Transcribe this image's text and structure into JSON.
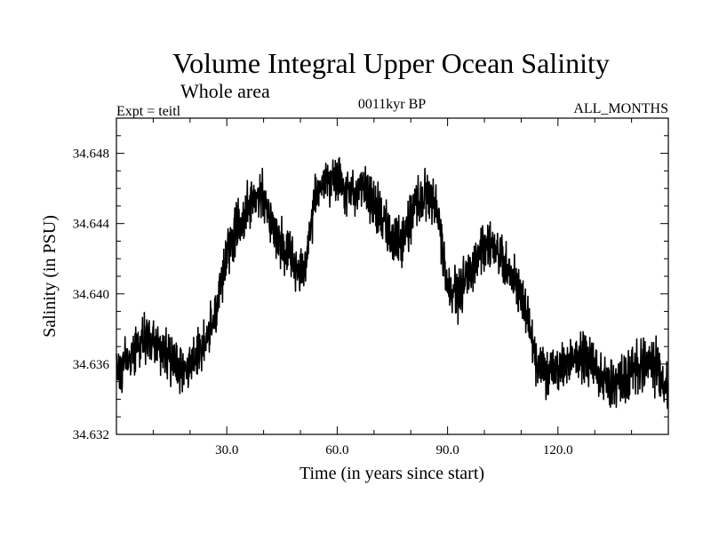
{
  "chart_data": {
    "type": "line",
    "title": "Volume Integral Upper Ocean Salinity",
    "subtitle": "Whole area",
    "experiment_label": "Expt = teitl",
    "period_label": "0011kyr BP",
    "months_label": "ALL_MONTHS",
    "xlabel": "Time (in years since start)",
    "ylabel": "Salinity (in PSU)",
    "xlim": [
      0,
      150
    ],
    "ylim": [
      34.632,
      34.65
    ],
    "x_ticks": [
      {
        "value": 30,
        "label": "30.0"
      },
      {
        "value": 60,
        "label": "60.0"
      },
      {
        "value": 90,
        "label": "90.0"
      },
      {
        "value": 120,
        "label": "120.0"
      }
    ],
    "y_ticks": [
      {
        "value": 34.632,
        "label": "34.632"
      },
      {
        "value": 34.636,
        "label": "34.636"
      },
      {
        "value": 34.64,
        "label": "34.640"
      },
      {
        "value": 34.644,
        "label": "34.644"
      },
      {
        "value": 34.648,
        "label": "34.648"
      }
    ],
    "grid": false,
    "series": [
      {
        "name": "salinity",
        "description": "Monthly series; smoothed envelope given as yearly centerline values, with monthly variability amplitude",
        "monthly_amplitude_psu": 0.0013,
        "x": [
          0,
          3,
          6,
          9,
          12,
          15,
          18,
          21,
          24,
          27,
          30,
          33,
          36,
          39,
          42,
          45,
          48,
          51,
          54,
          57,
          60,
          63,
          66,
          69,
          72,
          75,
          78,
          81,
          84,
          87,
          90,
          93,
          96,
          99,
          102,
          105,
          108,
          111,
          114,
          117,
          120,
          123,
          126,
          129,
          132,
          135,
          138,
          141,
          144,
          147,
          150
        ],
        "values": [
          34.6355,
          34.6362,
          34.637,
          34.6375,
          34.6368,
          34.6362,
          34.6358,
          34.6362,
          34.6372,
          34.6388,
          34.6425,
          34.644,
          34.645,
          34.6458,
          34.644,
          34.6428,
          34.6418,
          34.6408,
          34.6455,
          34.6465,
          34.6465,
          34.6458,
          34.646,
          34.6455,
          34.6445,
          34.643,
          34.643,
          34.6452,
          34.6455,
          34.645,
          34.6405,
          34.64,
          34.6412,
          34.6425,
          34.643,
          34.6418,
          34.641,
          34.6392,
          34.636,
          34.6355,
          34.6358,
          34.6362,
          34.6365,
          34.6362,
          34.6352,
          34.6348,
          34.6352,
          34.6358,
          34.636,
          34.6358,
          34.6345
        ]
      }
    ]
  }
}
